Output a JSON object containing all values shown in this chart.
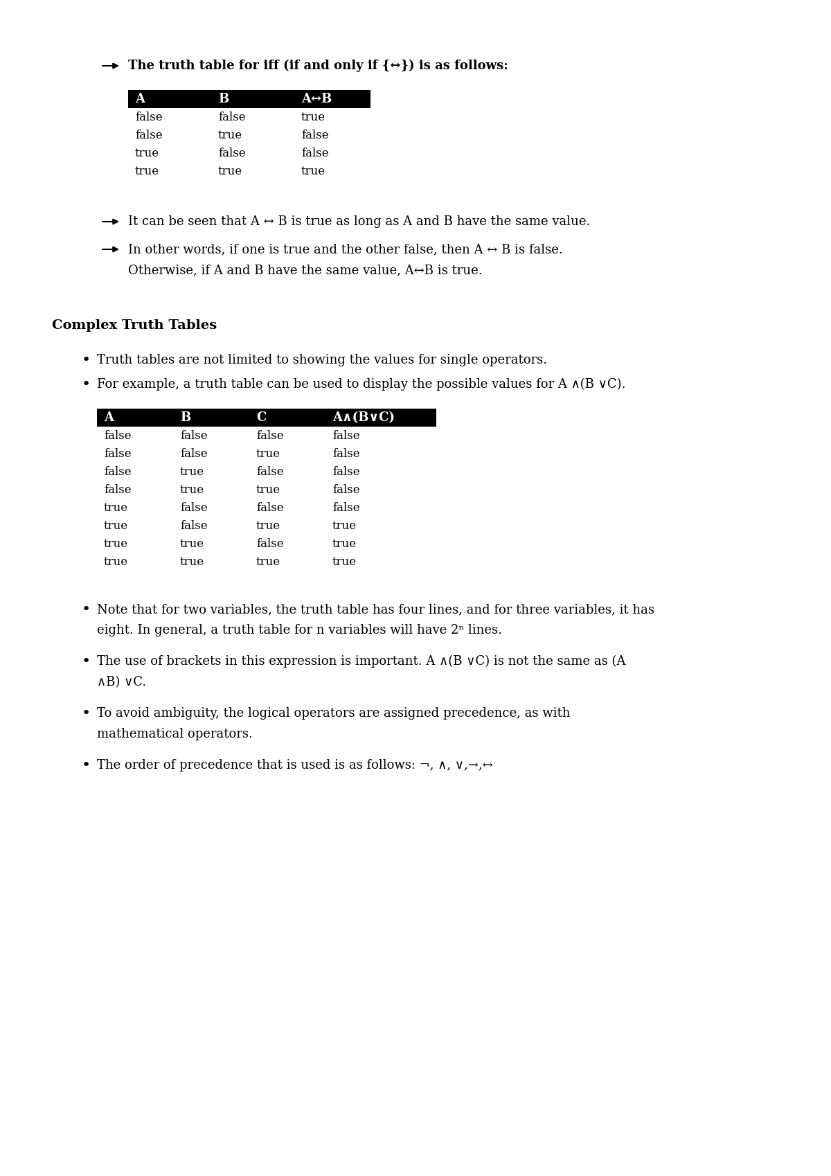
{
  "bg_color": "#ffffff",
  "text_color": "#000000",
  "header_bg": "#000000",
  "header_fg": "#ffffff",
  "section1_intro": "The truth table for iff (if and only if {↔}) is as follows:",
  "table1_headers": [
    "A",
    "B",
    "A↔B"
  ],
  "table1_rows": [
    [
      "false",
      "false",
      "true"
    ],
    [
      "false",
      "true",
      "false"
    ],
    [
      "true",
      "false",
      "false"
    ],
    [
      "true",
      "true",
      "true"
    ]
  ],
  "bullet1": "It can be seen that A ↔ B is true as long as A and B have the same value.",
  "bullet2_line1": "In other words, if one is true and the other false, then A ↔ B is false.",
  "bullet2_line2": "Otherwise, if A and B have the same value, A↔B is true.",
  "section_title": "Complex Truth Tables",
  "cbullet1": "Truth tables are not limited to showing the values for single operators.",
  "cbullet2": "For example, a truth table can be used to display the possible values for A ∧(B ∨C).",
  "table2_headers": [
    "A",
    "B",
    "C",
    "A∧(B∨C)"
  ],
  "table2_rows": [
    [
      "false",
      "false",
      "false",
      "false"
    ],
    [
      "false",
      "false",
      "true",
      "false"
    ],
    [
      "false",
      "true",
      "false",
      "false"
    ],
    [
      "false",
      "true",
      "true",
      "false"
    ],
    [
      "true",
      "false",
      "false",
      "false"
    ],
    [
      "true",
      "false",
      "true",
      "true"
    ],
    [
      "true",
      "true",
      "false",
      "true"
    ],
    [
      "true",
      "true",
      "true",
      "true"
    ]
  ],
  "nbullet1_line1": "Note that for two variables, the truth table has four lines, and for three variables, it has",
  "nbullet1_line2": "eight. In general, a truth table for n variables will have 2ⁿ lines.",
  "nbullet2_line1": "The use of brackets in this expression is important. A ∧(B ∨C) is not the same as (A",
  "nbullet2_line2": "∧B) ∨C.",
  "nbullet3_line1": "To avoid ambiguity, the logical operators are assigned precedence, as with",
  "nbullet3_line2": "mathematical operators.",
  "nbullet4": "The order of precedence that is used is as follows: ¬, ∧, ∨,→,↔"
}
